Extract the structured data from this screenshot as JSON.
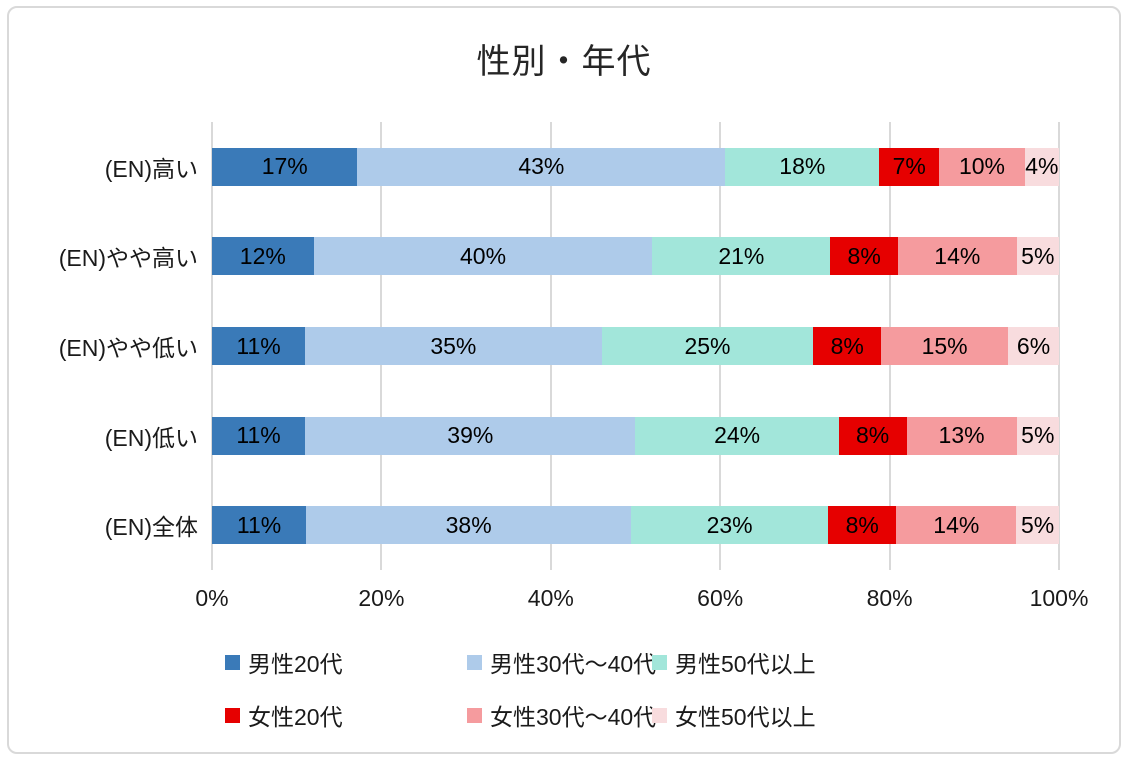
{
  "chart_data": {
    "type": "bar",
    "orientation": "horizontal",
    "stacked": true,
    "title": "性別・年代",
    "categories": [
      "(EN)高い",
      "(EN)やや高い",
      "(EN)やや低い",
      "(EN)低い",
      "(EN)全体"
    ],
    "series": [
      {
        "name": "男性20代",
        "color": "#3a7ab8",
        "values": [
          17,
          12,
          11,
          11,
          11
        ]
      },
      {
        "name": "男性30代～40代",
        "color": "#aecbea",
        "values": [
          43,
          40,
          35,
          39,
          38
        ]
      },
      {
        "name": "男性50代以上",
        "color": "#a2e6da",
        "values": [
          18,
          21,
          25,
          24,
          23
        ]
      },
      {
        "name": "女性20代",
        "color": "#e60000",
        "values": [
          7,
          8,
          8,
          8,
          8
        ]
      },
      {
        "name": "女性30代～40代",
        "color": "#f59b9e",
        "values": [
          10,
          14,
          15,
          13,
          14
        ]
      },
      {
        "name": "女性50代以上",
        "color": "#f8dcde",
        "values": [
          4,
          5,
          6,
          5,
          5
        ]
      }
    ],
    "value_label_suffix": "%",
    "x_ticks": [
      "0%",
      "20%",
      "40%",
      "60%",
      "80%",
      "100%"
    ],
    "xlim": [
      0,
      100
    ],
    "grid": true,
    "gridline_color": "#d9d9d9",
    "legend_position": "bottom",
    "legend_rows": [
      [
        0,
        1,
        2
      ],
      [
        3,
        4,
        5
      ]
    ]
  }
}
